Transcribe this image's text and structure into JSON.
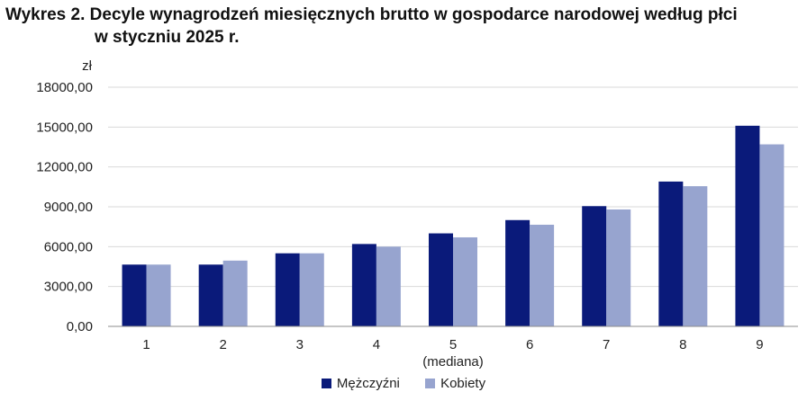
{
  "title": {
    "line1": "Wykres 2. Decyle wynagrodzeń miesięcznych brutto w gospodarce narodowej według płci",
    "line2": "w styczniu 2025 r."
  },
  "colors": {
    "men": "#0a1a7a",
    "women": "#97a4cf",
    "grid": "#d9d9d9",
    "axis": "#8c8c8c"
  },
  "chart_data": {
    "type": "bar",
    "ylabel": "zł",
    "ylim": [
      0,
      18000
    ],
    "yticks": [
      "0,00",
      "3000,00",
      "6000,00",
      "9000,00",
      "12000,00",
      "15000,00",
      "18000,00"
    ],
    "ytick_values": [
      0,
      3000,
      6000,
      9000,
      12000,
      15000,
      18000
    ],
    "categories": [
      "1",
      "2",
      "3",
      "4",
      "5",
      "6",
      "7",
      "8",
      "9"
    ],
    "category_notes": {
      "5": "(mediana)"
    },
    "grid": true,
    "legend_position": "bottom",
    "series": [
      {
        "name": "Mężczyźni",
        "values": [
          4650,
          4650,
          5500,
          6200,
          7000,
          8000,
          9050,
          10900,
          15100
        ]
      },
      {
        "name": "Kobiety",
        "values": [
          4650,
          4950,
          5500,
          6000,
          6700,
          7650,
          8800,
          10550,
          13700
        ]
      }
    ]
  }
}
